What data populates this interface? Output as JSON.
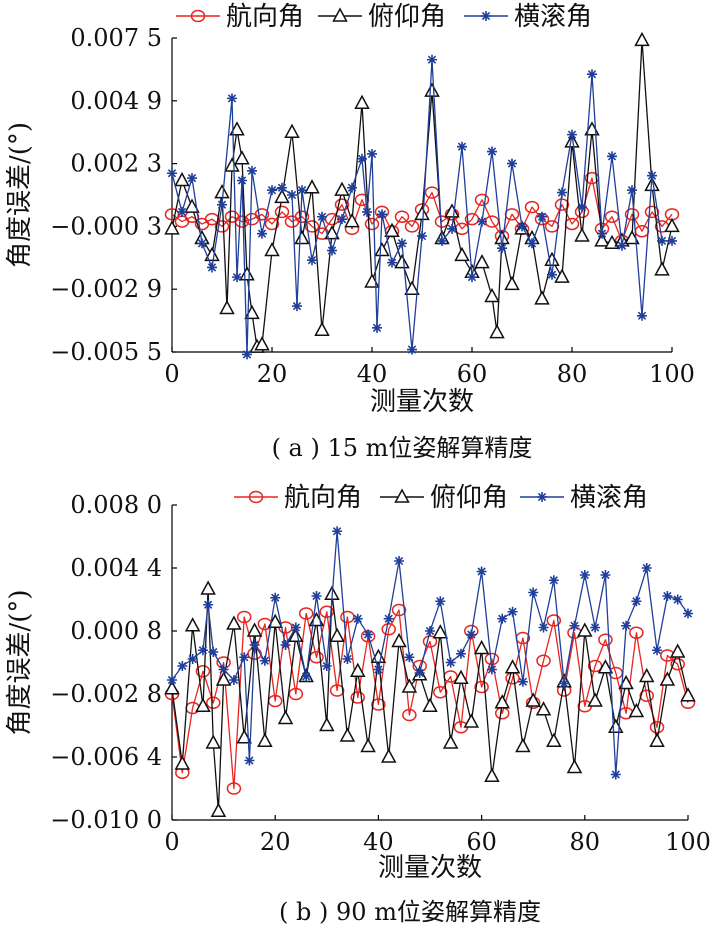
{
  "chart_data": [
    {
      "type": "line",
      "caption": "( a ) 15 m位姿解算精度",
      "xlabel": "测量次数",
      "ylabel": "角度误差/(°)",
      "xlim": [
        0,
        100
      ],
      "ylim": [
        -0.0055,
        0.0075
      ],
      "xticks": [
        "0",
        "20",
        "40",
        "60",
        "80",
        "100"
      ],
      "yticks": [
        "−0.005 5",
        "−0.002 9",
        "−0.000 3",
        "0.002 3",
        "0.004 9",
        "0.007 5"
      ],
      "legend": "top",
      "grid": false,
      "series": [
        {
          "name": "航向角",
          "color": "#e8251f",
          "marker": "circle",
          "x": [
            0,
            2,
            4,
            6,
            8,
            10,
            12,
            14,
            16,
            18,
            20,
            22,
            24,
            26,
            28,
            30,
            32,
            34,
            36,
            38,
            40,
            42,
            44,
            46,
            48,
            50,
            52,
            54,
            56,
            58,
            60,
            62,
            64,
            66,
            68,
            70,
            72,
            74,
            76,
            78,
            80,
            82,
            84,
            86,
            88,
            90,
            92,
            94,
            96,
            98,
            100
          ],
          "values": [
            0.0002,
            -0.0001,
            0.0001,
            -0.0002,
            0.0,
            -0.0003,
            0.0001,
            -0.0001,
            0.0,
            0.0002,
            -0.0002,
            0.0003,
            -0.0001,
            0.0001,
            -0.0003,
            -0.0006,
            0.0,
            0.0006,
            -0.0004,
            0.0008,
            -0.0002,
            0.0003,
            -0.0005,
            0.0001,
            -0.0003,
            0.0004,
            0.0011,
            -0.0001,
            0.0002,
            -0.0004,
            0.0,
            0.0008,
            -0.0001,
            -0.0007,
            0.0002,
            -0.0004,
            0.0005,
            0.0,
            -0.0003,
            0.0006,
            -0.0002,
            0.0003,
            0.0017,
            -0.0004,
            0.0001,
            -0.0009,
            0.0002,
            -0.0005,
            0.0003,
            -0.0003,
            0.0002
          ]
        },
        {
          "name": "俯仰角",
          "color": "#111111",
          "marker": "triangle",
          "x": [
            0,
            2,
            4,
            6,
            8,
            10,
            11,
            12,
            13,
            14,
            15,
            16,
            17,
            18,
            20,
            22,
            24,
            26,
            28,
            30,
            32,
            34,
            36,
            38,
            40,
            42,
            44,
            46,
            48,
            50,
            52,
            54,
            56,
            58,
            60,
            62,
            64,
            65,
            66,
            68,
            70,
            72,
            74,
            76,
            78,
            80,
            82,
            84,
            86,
            88,
            90,
            92,
            94,
            96,
            98,
            100
          ],
          "values": [
            -0.0004,
            0.0016,
            0.0005,
            -0.0008,
            -0.0015,
            0.0011,
            -0.0037,
            0.0022,
            0.0037,
            0.0025,
            -0.0023,
            -0.0039,
            -0.0053,
            -0.0052,
            -0.0013,
            0.0009,
            0.0036,
            -0.0008,
            0.0013,
            -0.0046,
            -0.0006,
            0.0012,
            -0.0001,
            0.0048,
            -0.0026,
            -0.0013,
            -0.0005,
            -0.0018,
            -0.0029,
            0.0002,
            0.0053,
            -0.0008,
            0.0003,
            -0.0015,
            -0.0022,
            -0.0018,
            -0.0032,
            -0.0047,
            -0.0008,
            -0.0027,
            -0.0004,
            -0.0008,
            -0.0033,
            -0.0017,
            -0.0024,
            0.0032,
            -0.0007,
            0.0037,
            -0.0009,
            -0.001,
            -0.0009,
            -0.0008,
            0.0074,
            0.0014,
            -0.0021,
            -0.0003
          ]
        },
        {
          "name": "横滚角",
          "color": "#1f3f9a",
          "marker": "asterisk",
          "x": [
            0,
            2,
            4,
            6,
            8,
            10,
            12,
            13,
            14,
            15,
            16,
            18,
            20,
            22,
            24,
            25,
            26,
            28,
            30,
            32,
            34,
            36,
            38,
            39,
            40,
            41,
            42,
            44,
            46,
            48,
            50,
            52,
            54,
            56,
            58,
            60,
            62,
            64,
            66,
            68,
            70,
            72,
            74,
            76,
            78,
            80,
            82,
            84,
            86,
            88,
            90,
            92,
            94,
            96,
            98,
            100
          ],
          "values": [
            0.0019,
            0.0003,
            0.0017,
            -0.001,
            -0.002,
            0.0006,
            0.005,
            -0.0024,
            0.0016,
            -0.0056,
            0.002,
            -0.0006,
            0.0012,
            0.0013,
            0.001,
            -0.0036,
            0.0012,
            -0.0017,
            0.0001,
            -0.0013,
            0.0,
            0.0013,
            0.0025,
            0.0003,
            0.0027,
            -0.0045,
            0.0002,
            -0.0018,
            -0.001,
            -0.0054,
            -0.0007,
            0.0066,
            -0.0009,
            -0.0004,
            0.003,
            -0.0024,
            -0.0001,
            0.0028,
            -0.0012,
            0.0023,
            -0.0003,
            -0.001,
            0.0001,
            -0.0023,
            0.0011,
            0.0035,
            0.0005,
            0.006,
            -0.0006,
            0.0026,
            -0.0011,
            0.0012,
            -0.004,
            0.0018,
            -0.0009,
            -0.0009
          ]
        }
      ]
    },
    {
      "type": "line",
      "caption": "( b ) 90 m位姿解算精度",
      "xlabel": "测量次数",
      "ylabel": "角度误差/(°)",
      "xlim": [
        0,
        100
      ],
      "ylim": [
        -0.01,
        0.008
      ],
      "xticks": [
        "0",
        "20",
        "40",
        "60",
        "80",
        "100"
      ],
      "yticks": [
        "−0.010 0",
        "−0.006 4",
        "−0.002 8",
        "0.000 8",
        "0.004 4",
        "0.008 0"
      ],
      "legend": "top",
      "grid": false,
      "series": [
        {
          "name": "航向角",
          "color": "#e8251f",
          "marker": "circle",
          "x": [
            0,
            2,
            4,
            6,
            8,
            10,
            12,
            14,
            16,
            18,
            20,
            22,
            24,
            26,
            28,
            30,
            32,
            34,
            36,
            38,
            40,
            42,
            44,
            46,
            48,
            50,
            52,
            54,
            56,
            58,
            60,
            62,
            64,
            66,
            68,
            70,
            72,
            74,
            76,
            78,
            80,
            82,
            84,
            86,
            88,
            90,
            92,
            94,
            96,
            98,
            100
          ],
          "values": [
            -0.0028,
            -0.0073,
            -0.0036,
            -0.0015,
            -0.0033,
            -0.001,
            -0.0082,
            0.0016,
            -0.0005,
            0.0012,
            -0.0032,
            0.001,
            -0.0028,
            0.0018,
            -0.0007,
            0.0019,
            -0.0026,
            0.0016,
            -0.003,
            0.0005,
            -0.0034,
            0.0009,
            0.002,
            -0.004,
            -0.0012,
            0.0002,
            -0.0027,
            -0.0018,
            -0.0047,
            0.0008,
            -0.0024,
            -0.0008,
            -0.0039,
            -0.0019,
            0.0004,
            -0.0033,
            -0.0009,
            0.0014,
            -0.0026,
            0.0007,
            -0.0035,
            -0.0012,
            0.0003,
            -0.0016,
            -0.0039,
            0.0007,
            -0.0029,
            -0.0047,
            -0.0006,
            -0.0011,
            -0.0033
          ]
        },
        {
          "name": "俯仰角",
          "color": "#111111",
          "marker": "triangle",
          "x": [
            0,
            2,
            4,
            6,
            7,
            8,
            9,
            10,
            12,
            14,
            16,
            18,
            20,
            22,
            24,
            26,
            28,
            30,
            31,
            32,
            34,
            36,
            38,
            40,
            42,
            44,
            46,
            48,
            50,
            52,
            54,
            56,
            58,
            60,
            62,
            64,
            66,
            68,
            70,
            72,
            74,
            76,
            78,
            80,
            82,
            84,
            86,
            88,
            90,
            92,
            94,
            96,
            98,
            100
          ],
          "values": [
            -0.0025,
            -0.0068,
            0.0011,
            -0.0035,
            0.0032,
            -0.0056,
            -0.0095,
            -0.002,
            0.0012,
            -0.0053,
            0.0008,
            -0.0055,
            0.0013,
            -0.0042,
            0.0005,
            -0.0018,
            0.0014,
            -0.0046,
            0.0029,
            0.0005,
            -0.0052,
            -0.0015,
            -0.0058,
            -0.0007,
            -0.0064,
            0.0002,
            -0.0024,
            -0.0017,
            -0.0035,
            0.0007,
            -0.0056,
            -0.0019,
            -0.0044,
            -0.0002,
            -0.0075,
            -0.0033,
            -0.0013,
            -0.0058,
            -0.0032,
            -0.0037,
            -0.0055,
            -0.0021,
            -0.007,
            0.0008,
            -0.0032,
            -0.0013,
            -0.0047,
            -0.0022,
            -0.0038,
            -0.0018,
            -0.0055,
            -0.002,
            -0.0004,
            -0.0029
          ]
        },
        {
          "name": "横滚角",
          "color": "#1f3f9a",
          "marker": "asterisk",
          "x": [
            0,
            2,
            4,
            6,
            7,
            8,
            10,
            12,
            14,
            15,
            16,
            18,
            20,
            22,
            24,
            26,
            28,
            30,
            32,
            34,
            36,
            38,
            40,
            42,
            44,
            46,
            48,
            50,
            52,
            54,
            56,
            58,
            60,
            62,
            64,
            66,
            68,
            70,
            72,
            74,
            76,
            78,
            80,
            82,
            84,
            86,
            88,
            90,
            92,
            94,
            96,
            98,
            100
          ],
          "values": [
            -0.002,
            -0.0012,
            -0.0008,
            -0.0003,
            0.0023,
            -0.0004,
            -0.0014,
            -0.002,
            -0.0007,
            -0.0066,
            0.0,
            -0.0009,
            0.0027,
            0.0,
            0.001,
            -0.0018,
            0.0028,
            -0.0012,
            0.0065,
            -0.0008,
            0.0015,
            0.0006,
            -0.0014,
            0.0015,
            0.0048,
            -0.0007,
            -0.0016,
            0.0008,
            0.0025,
            -0.001,
            -0.0005,
            0.0006,
            0.0042,
            -0.0014,
            0.0015,
            0.0019,
            -0.0021,
            0.003,
            0.001,
            0.0037,
            -0.0022,
            0.0011,
            0.004,
            0.001,
            0.004,
            -0.0074,
            0.0011,
            0.0025,
            0.0044,
            -0.0003,
            0.0028,
            0.0026,
            0.0018
          ]
        }
      ]
    }
  ]
}
